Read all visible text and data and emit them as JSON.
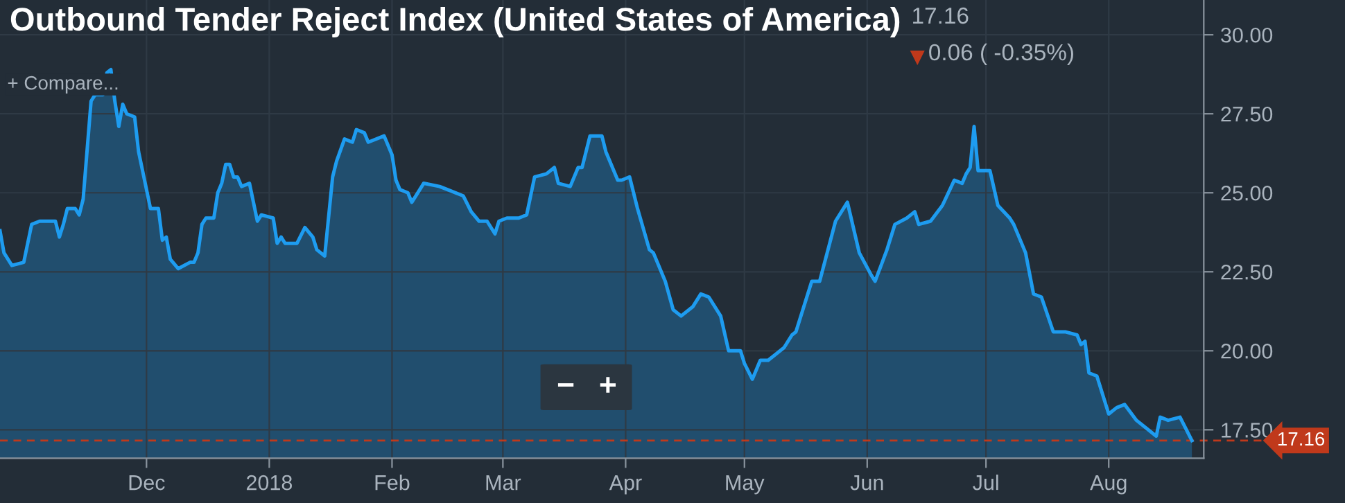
{
  "chart_data": {
    "type": "area",
    "title": "Outbound Tender Reject Index (United States of America)",
    "annotations": [
      "17.16",
      "0.06 ( -0.35%)",
      "+ Compare...",
      "−",
      "+"
    ],
    "x": [
      "2017-10-25",
      "2017-10-26",
      "2017-10-28",
      "2017-10-31",
      "2017-11-02",
      "2017-11-04",
      "2017-11-08",
      "2017-11-09",
      "2017-11-10",
      "2017-11-11",
      "2017-11-13",
      "2017-11-14",
      "2017-11-15",
      "2017-11-17",
      "2017-11-18",
      "2017-11-20",
      "2017-11-21",
      "2017-11-22",
      "2017-11-23",
      "2017-11-24",
      "2017-11-25",
      "2017-11-26",
      "2017-11-28",
      "2017-11-29",
      "2017-12-02",
      "2017-12-04",
      "2017-12-05",
      "2017-12-06",
      "2017-12-07",
      "2017-12-09",
      "2017-12-12",
      "2017-12-13",
      "2017-12-14",
      "2017-12-15",
      "2017-12-16",
      "2017-12-18",
      "2017-12-19",
      "2017-12-20",
      "2017-12-21",
      "2017-12-22",
      "2017-12-23",
      "2017-12-24",
      "2017-12-25",
      "2017-12-27",
      "2017-12-29",
      "2017-12-30",
      "2018-01-02",
      "2018-01-03",
      "2018-01-04",
      "2018-01-05",
      "2018-01-08",
      "2018-01-10",
      "2018-01-12",
      "2018-01-13",
      "2018-01-15",
      "2018-01-17",
      "2018-01-18",
      "2018-01-20",
      "2018-01-22",
      "2018-01-23",
      "2018-01-25",
      "2018-01-26",
      "2018-01-30",
      "2018-02-01",
      "2018-02-02",
      "2018-02-03",
      "2018-02-05",
      "2018-02-06",
      "2018-02-07",
      "2018-02-09",
      "2018-02-13",
      "2018-02-15",
      "2018-02-19",
      "2018-02-21",
      "2018-02-23",
      "2018-02-25",
      "2018-02-27",
      "2018-02-28",
      "2018-03-02",
      "2018-03-05",
      "2018-03-07",
      "2018-03-09",
      "2018-03-12",
      "2018-03-14",
      "2018-03-15",
      "2018-03-18",
      "2018-03-20",
      "2018-03-21",
      "2018-03-23",
      "2018-03-26",
      "2018-03-27",
      "2018-03-30",
      "2018-03-31",
      "2018-04-02",
      "2018-04-04",
      "2018-04-07",
      "2018-04-08",
      "2018-04-11",
      "2018-04-13",
      "2018-04-15",
      "2018-04-18",
      "2018-04-20",
      "2018-04-22",
      "2018-04-25",
      "2018-04-27",
      "2018-04-30",
      "2018-05-01",
      "2018-05-03",
      "2018-05-05",
      "2018-05-07",
      "2018-05-11",
      "2018-05-13",
      "2018-05-14",
      "2018-05-18",
      "2018-05-20",
      "2018-05-24",
      "2018-05-27",
      "2018-05-30",
      "2018-06-02",
      "2018-06-03",
      "2018-06-06",
      "2018-06-08",
      "2018-06-11",
      "2018-06-13",
      "2018-06-14",
      "2018-06-17",
      "2018-06-20",
      "2018-06-23",
      "2018-06-25",
      "2018-06-26",
      "2018-06-27",
      "2018-06-28",
      "2018-06-29",
      "2018-07-02",
      "2018-07-04",
      "2018-07-07",
      "2018-07-08",
      "2018-07-11",
      "2018-07-13",
      "2018-07-15",
      "2018-07-18",
      "2018-07-21",
      "2018-07-24",
      "2018-07-25",
      "2018-07-26",
      "2018-07-27",
      "2018-07-29",
      "2018-08-01",
      "2018-08-03",
      "2018-08-05",
      "2018-08-08",
      "2018-08-13",
      "2018-08-14",
      "2018-08-16",
      "2018-08-19",
      "2018-08-22"
    ],
    "series": [
      {
        "color": "#1e9cf0",
        "values": [
          23.8,
          23.1,
          22.7,
          22.8,
          24.0,
          24.1,
          24.1,
          23.6,
          24.0,
          24.5,
          24.5,
          24.3,
          24.8,
          27.9,
          28.1,
          28.1,
          28.8,
          28.9,
          27.9,
          27.1,
          27.8,
          27.5,
          27.4,
          26.3,
          24.5,
          24.5,
          23.5,
          23.6,
          22.9,
          22.6,
          22.8,
          22.8,
          23.1,
          24.0,
          24.2,
          24.2,
          25.0,
          25.3,
          25.9,
          25.9,
          25.5,
          25.5,
          25.2,
          25.3,
          24.1,
          24.3,
          24.2,
          23.4,
          23.6,
          23.4,
          23.4,
          23.9,
          23.6,
          23.2,
          23.0,
          25.5,
          26.0,
          26.7,
          26.6,
          27.0,
          26.9,
          26.6,
          26.8,
          26.2,
          25.4,
          25.1,
          25.0,
          24.7,
          24.9,
          25.3,
          25.2,
          25.1,
          24.9,
          24.4,
          24.1,
          24.1,
          23.7,
          24.1,
          24.2,
          24.2,
          24.3,
          25.5,
          25.6,
          25.8,
          25.3,
          25.2,
          25.8,
          25.8,
          26.8,
          26.8,
          26.3,
          25.4,
          25.4,
          25.5,
          24.5,
          23.2,
          23.1,
          22.2,
          21.3,
          21.1,
          21.4,
          21.8,
          21.7,
          21.1,
          20.0,
          20.0,
          19.6,
          19.1,
          19.7,
          19.7,
          20.1,
          20.5,
          20.6,
          22.2,
          22.2,
          24.1,
          24.7,
          23.1,
          22.4,
          22.2,
          23.2,
          24.0,
          24.2,
          24.4,
          24.0,
          24.1,
          24.6,
          25.4,
          25.3,
          25.6,
          25.8,
          27.1,
          25.7,
          25.7,
          24.6,
          24.2,
          24.0,
          23.1,
          21.8,
          21.7,
          20.6,
          20.6,
          20.5,
          20.2,
          20.3,
          19.3,
          19.2,
          18.0,
          18.2,
          18.3,
          17.8,
          17.3,
          17.9,
          17.8,
          17.9,
          17.16
        ]
      }
    ],
    "xlim": [
      "2017-10-25",
      "2018-08-25"
    ],
    "xticks": [
      {
        "value": "2017-12-01",
        "label": "Dec"
      },
      {
        "value": "2018-01-01",
        "label": "2018"
      },
      {
        "value": "2018-02-01",
        "label": "Feb"
      },
      {
        "value": "2018-03-01",
        "label": "Mar"
      },
      {
        "value": "2018-04-01",
        "label": "Apr"
      },
      {
        "value": "2018-05-01",
        "label": "May"
      },
      {
        "value": "2018-06-01",
        "label": "Jun"
      },
      {
        "value": "2018-07-01",
        "label": "Jul"
      },
      {
        "value": "2018-08-01",
        "label": "Aug"
      }
    ],
    "ylim": [
      16.6,
      31.1
    ],
    "yticks": [
      {
        "value": 17.5,
        "label": "17.50"
      },
      {
        "value": 20,
        "label": "20.00"
      },
      {
        "value": 22.5,
        "label": "22.50"
      },
      {
        "value": 25,
        "label": "25.00"
      },
      {
        "value": 27.5,
        "label": "27.50"
      },
      {
        "value": 30,
        "label": "30.00"
      }
    ],
    "ref_lines": [
      {
        "axis": "y",
        "value": 17.16,
        "label": "17.16",
        "color": "#c0391b",
        "line_style": "dashed"
      }
    ],
    "grid": true
  }
}
